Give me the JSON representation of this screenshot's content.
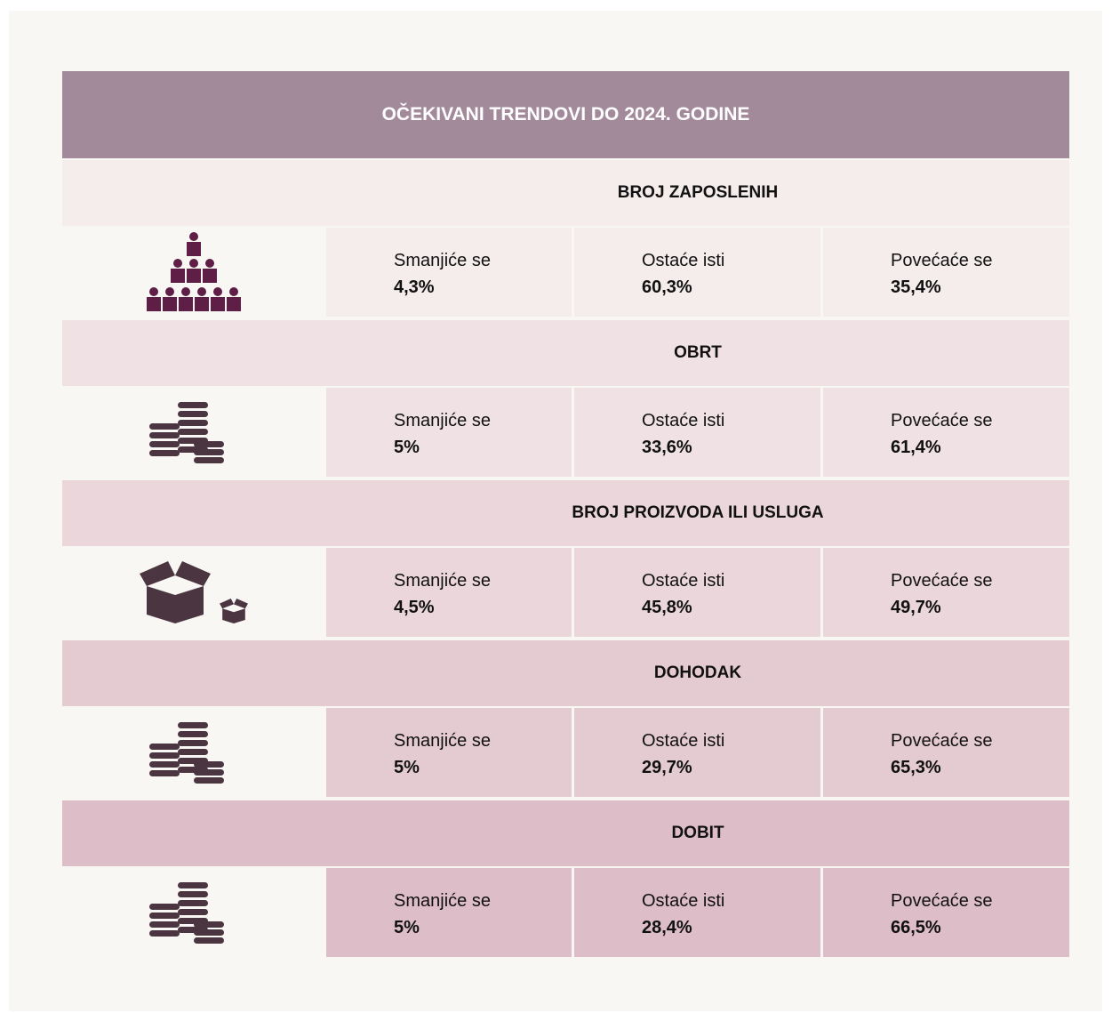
{
  "title": "OČEKIVANI TRENDOVI DO 2024. GODINE",
  "sections": [
    {
      "title": "BROJ ZAPOSLENIH",
      "items": [
        {
          "label": "Smanjiće se",
          "value": "4,3%"
        },
        {
          "label": "Ostaće isti",
          "value": "60,3%"
        },
        {
          "label": "Povećaće se",
          "value": "35,4%"
        }
      ]
    },
    {
      "title": "OBRT",
      "items": [
        {
          "label": "Smanjiće se",
          "value": "5%"
        },
        {
          "label": "Ostaće isti",
          "value": "33,6%"
        },
        {
          "label": "Povećaće se",
          "value": "61,4%"
        }
      ]
    },
    {
      "title": "BROJ PROIZVODA ILI USLUGA",
      "items": [
        {
          "label": "Smanjiće se",
          "value": "4,5%"
        },
        {
          "label": "Ostaće isti",
          "value": "45,8%"
        },
        {
          "label": "Povećaće se",
          "value": "49,7%"
        }
      ]
    },
    {
      "title": "DOHODAK",
      "items": [
        {
          "label": "Smanjiće se",
          "value": "5%"
        },
        {
          "label": "Ostaće isti",
          "value": "29,7%"
        },
        {
          "label": "Povećaće se",
          "value": "65,3%"
        }
      ]
    },
    {
      "title": "DOBIT",
      "items": [
        {
          "label": "Smanjiće se",
          "value": "5%"
        },
        {
          "label": "Ostaće isti",
          "value": "28,4%"
        },
        {
          "label": "Povećaće se",
          "value": "66,5%"
        }
      ]
    }
  ]
}
